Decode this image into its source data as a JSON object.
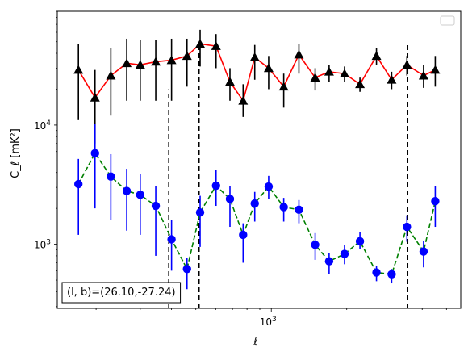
{
  "chart_data": {
    "type": "scatter",
    "title": "",
    "xlabel": "ℓ",
    "ylabel": "C_ℓ  [mK²]",
    "xscale": "log",
    "yscale": "log",
    "xlim": [
      140,
      5700
    ],
    "ylim": [
      290,
      90000
    ],
    "xticks": [
      {
        "value": 1000,
        "base": "10",
        "exp": "3"
      }
    ],
    "yticks": [
      {
        "value": 1000,
        "base": "10",
        "exp": "3"
      },
      {
        "value": 10000,
        "base": "10",
        "exp": "4"
      }
    ],
    "grid": false,
    "legend": {
      "visible": true,
      "placement": "top-right",
      "entries": []
    },
    "annotation": "(l, b)=(26.10,-27.24)",
    "vlines": [
      {
        "x": 390,
        "y_top": 20000
      },
      {
        "x": 515,
        "y_top": 45000
      },
      {
        "x": 3500,
        "y_top": 48000
      }
    ],
    "series": [
      {
        "style": "black-triangle-red-line",
        "marker_color": "#000000",
        "line_color": "#ff0000",
        "line_style": "solid",
        "x": [
          170,
          198,
          229,
          265,
          300,
          346,
          400,
          461,
          520,
          602,
          684,
          772,
          859,
          976,
          1121,
          1289,
          1496,
          1701,
          1960,
          2258,
          2628,
          3022,
          3477,
          4051,
          4510
        ],
        "y": [
          29000,
          17000,
          26000,
          33000,
          32000,
          34000,
          35000,
          38000,
          48000,
          46000,
          23000,
          16000,
          37000,
          30000,
          21000,
          39000,
          25000,
          28000,
          27000,
          22000,
          38000,
          24000,
          32000,
          26000,
          29000
        ],
        "yerr_low": [
          18000,
          10000,
          14000,
          17000,
          16000,
          18000,
          19000,
          17000,
          17000,
          16000,
          7000,
          4300,
          13000,
          10000,
          7000,
          12000,
          5500,
          5000,
          4000,
          3000,
          6000,
          4000,
          6000,
          5500,
          8000
        ],
        "yerr_high": [
          19000,
          12000,
          18000,
          20000,
          20000,
          18000,
          18000,
          15000,
          15000,
          12000,
          7000,
          6000,
          10000,
          8000,
          6000,
          9000,
          5000,
          4000,
          4000,
          3000,
          6000,
          4000,
          6000,
          6000,
          9000
        ]
      },
      {
        "style": "blue-circle-green-dashed",
        "marker_color": "#0000ff",
        "line_color": "#008000",
        "line_style": "dashed",
        "x": [
          170,
          198,
          229,
          265,
          300,
          346,
          400,
          461,
          520,
          602,
          684,
          772,
          859,
          976,
          1121,
          1289,
          1496,
          1701,
          1960,
          2258,
          2628,
          3022,
          3477,
          4051,
          4510
        ],
        "y": [
          3200,
          5800,
          3700,
          2800,
          2600,
          2100,
          1100,
          620,
          1850,
          3100,
          2400,
          1200,
          2200,
          3050,
          2050,
          1950,
          990,
          720,
          830,
          1060,
          580,
          560,
          1400,
          870,
          2300
        ],
        "yerr_low": [
          2000,
          3800,
          2100,
          1500,
          1400,
          1300,
          500,
          200,
          900,
          1000,
          1000,
          500,
          650,
          650,
          500,
          450,
          250,
          160,
          150,
          150,
          90,
          90,
          350,
          230,
          900
        ],
        "yerr_high": [
          2000,
          4500,
          2000,
          1500,
          1300,
          1000,
          500,
          150,
          700,
          1100,
          700,
          300,
          550,
          700,
          400,
          400,
          250,
          120,
          150,
          200,
          80,
          60,
          350,
          200,
          800
        ]
      }
    ]
  }
}
